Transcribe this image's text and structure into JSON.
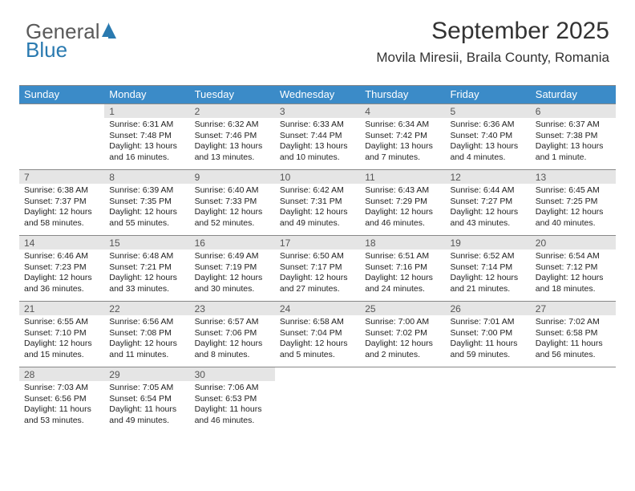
{
  "logo": {
    "text1": "General",
    "text2": "Blue"
  },
  "title": "September 2025",
  "location": "Movila Miresii, Braila County, Romania",
  "colors": {
    "header_bg": "#3b8bc8",
    "header_fg": "#ffffff",
    "daynum_bg": "#e5e5e5",
    "daynum_fg": "#555555",
    "text": "#222222",
    "rule": "#888888"
  },
  "weekdays": [
    "Sunday",
    "Monday",
    "Tuesday",
    "Wednesday",
    "Thursday",
    "Friday",
    "Saturday"
  ],
  "weeks": [
    {
      "nums": [
        "",
        "1",
        "2",
        "3",
        "4",
        "5",
        "6"
      ],
      "cells": [
        "",
        "Sunrise: 6:31 AM\nSunset: 7:48 PM\nDaylight: 13 hours and 16 minutes.",
        "Sunrise: 6:32 AM\nSunset: 7:46 PM\nDaylight: 13 hours and 13 minutes.",
        "Sunrise: 6:33 AM\nSunset: 7:44 PM\nDaylight: 13 hours and 10 minutes.",
        "Sunrise: 6:34 AM\nSunset: 7:42 PM\nDaylight: 13 hours and 7 minutes.",
        "Sunrise: 6:36 AM\nSunset: 7:40 PM\nDaylight: 13 hours and 4 minutes.",
        "Sunrise: 6:37 AM\nSunset: 7:38 PM\nDaylight: 13 hours and 1 minute."
      ]
    },
    {
      "nums": [
        "7",
        "8",
        "9",
        "10",
        "11",
        "12",
        "13"
      ],
      "cells": [
        "Sunrise: 6:38 AM\nSunset: 7:37 PM\nDaylight: 12 hours and 58 minutes.",
        "Sunrise: 6:39 AM\nSunset: 7:35 PM\nDaylight: 12 hours and 55 minutes.",
        "Sunrise: 6:40 AM\nSunset: 7:33 PM\nDaylight: 12 hours and 52 minutes.",
        "Sunrise: 6:42 AM\nSunset: 7:31 PM\nDaylight: 12 hours and 49 minutes.",
        "Sunrise: 6:43 AM\nSunset: 7:29 PM\nDaylight: 12 hours and 46 minutes.",
        "Sunrise: 6:44 AM\nSunset: 7:27 PM\nDaylight: 12 hours and 43 minutes.",
        "Sunrise: 6:45 AM\nSunset: 7:25 PM\nDaylight: 12 hours and 40 minutes."
      ]
    },
    {
      "nums": [
        "14",
        "15",
        "16",
        "17",
        "18",
        "19",
        "20"
      ],
      "cells": [
        "Sunrise: 6:46 AM\nSunset: 7:23 PM\nDaylight: 12 hours and 36 minutes.",
        "Sunrise: 6:48 AM\nSunset: 7:21 PM\nDaylight: 12 hours and 33 minutes.",
        "Sunrise: 6:49 AM\nSunset: 7:19 PM\nDaylight: 12 hours and 30 minutes.",
        "Sunrise: 6:50 AM\nSunset: 7:17 PM\nDaylight: 12 hours and 27 minutes.",
        "Sunrise: 6:51 AM\nSunset: 7:16 PM\nDaylight: 12 hours and 24 minutes.",
        "Sunrise: 6:52 AM\nSunset: 7:14 PM\nDaylight: 12 hours and 21 minutes.",
        "Sunrise: 6:54 AM\nSunset: 7:12 PM\nDaylight: 12 hours and 18 minutes."
      ]
    },
    {
      "nums": [
        "21",
        "22",
        "23",
        "24",
        "25",
        "26",
        "27"
      ],
      "cells": [
        "Sunrise: 6:55 AM\nSunset: 7:10 PM\nDaylight: 12 hours and 15 minutes.",
        "Sunrise: 6:56 AM\nSunset: 7:08 PM\nDaylight: 12 hours and 11 minutes.",
        "Sunrise: 6:57 AM\nSunset: 7:06 PM\nDaylight: 12 hours and 8 minutes.",
        "Sunrise: 6:58 AM\nSunset: 7:04 PM\nDaylight: 12 hours and 5 minutes.",
        "Sunrise: 7:00 AM\nSunset: 7:02 PM\nDaylight: 12 hours and 2 minutes.",
        "Sunrise: 7:01 AM\nSunset: 7:00 PM\nDaylight: 11 hours and 59 minutes.",
        "Sunrise: 7:02 AM\nSunset: 6:58 PM\nDaylight: 11 hours and 56 minutes."
      ]
    },
    {
      "nums": [
        "28",
        "29",
        "30",
        "",
        "",
        "",
        ""
      ],
      "cells": [
        "Sunrise: 7:03 AM\nSunset: 6:56 PM\nDaylight: 11 hours and 53 minutes.",
        "Sunrise: 7:05 AM\nSunset: 6:54 PM\nDaylight: 11 hours and 49 minutes.",
        "Sunrise: 7:06 AM\nSunset: 6:53 PM\nDaylight: 11 hours and 46 minutes.",
        "",
        "",
        "",
        ""
      ]
    }
  ]
}
